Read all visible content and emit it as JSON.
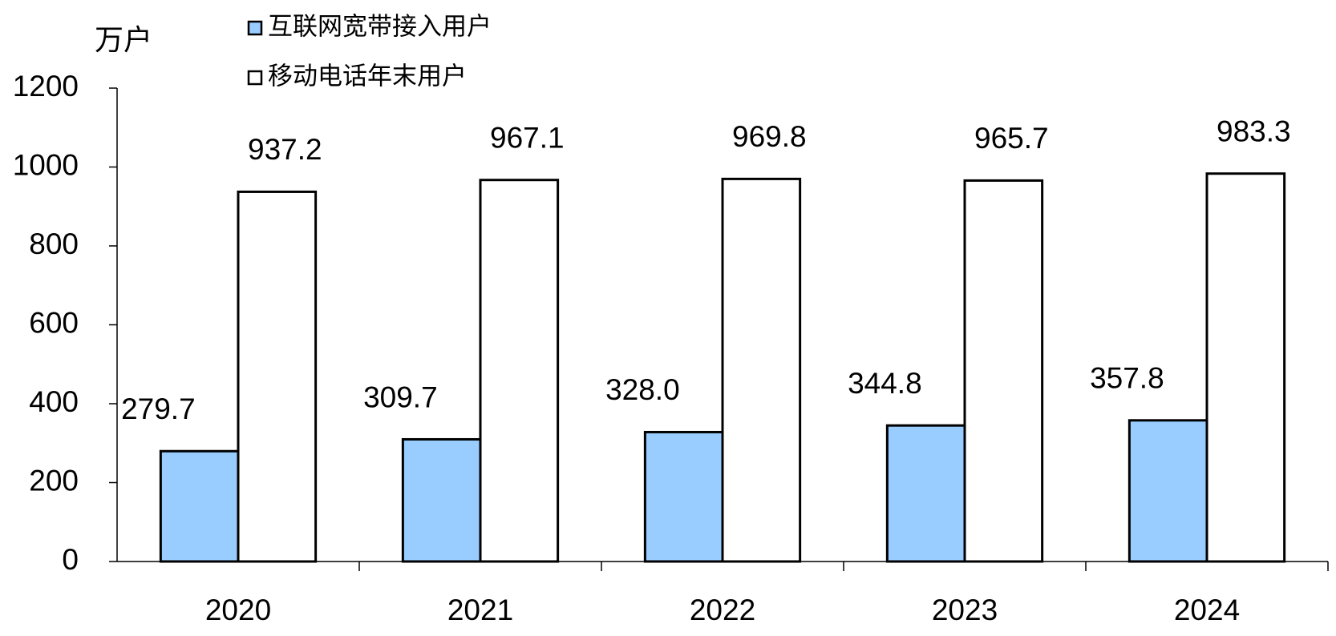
{
  "chart_data": {
    "type": "bar",
    "y_label": "万户",
    "categories": [
      "2020",
      "2021",
      "2022",
      "2023",
      "2024"
    ],
    "series": [
      {
        "name": "互联网宽带接入用户",
        "color": "#99ccff",
        "values": [
          279.7,
          309.7,
          328,
          344.8,
          357.8
        ],
        "value_labels": [
          "279.7",
          "309.7",
          "328.0",
          "344.8",
          "357.8"
        ]
      },
      {
        "name": "移动电话年末用户",
        "color": "#ffffff",
        "values": [
          937.2,
          967.1,
          969.8,
          965.7,
          983.3
        ],
        "value_labels": [
          "937.2",
          "967.1",
          "969.8",
          "965.7",
          "983.3"
        ]
      }
    ],
    "ylim": [
      0,
      1200
    ],
    "yticks": [
      0,
      200,
      400,
      600,
      800,
      1000,
      1200
    ],
    "grid": false
  }
}
